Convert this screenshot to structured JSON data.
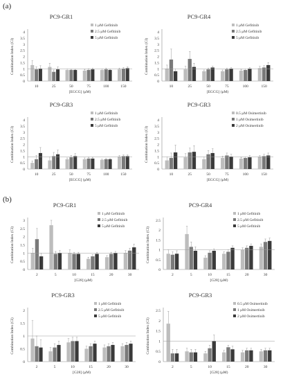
{
  "sections": [
    "(a)",
    "(b)"
  ],
  "colors": {
    "light": "#bdbdbd",
    "mid": "#7a7a7a",
    "dark": "#3a3a3a",
    "axis": "#888888",
    "ref": "#9a9a9a"
  },
  "chart_data": [
    {
      "type": "bar",
      "title": "PC9-GR1",
      "ylabel": "Combination Index (CI)",
      "xlabel": "[EGCG] (μM)",
      "ylim": [
        0,
        4
      ],
      "yticks": [
        0,
        0.5,
        1,
        1.5,
        2,
        2.5,
        3,
        3.5,
        4
      ],
      "ytick_labels": [
        "0",
        "0.5",
        "1",
        "1.5",
        "2",
        "2.5",
        "3",
        "3.5",
        "4"
      ],
      "categories": [
        "10",
        "25",
        "50",
        "75",
        "100",
        "150"
      ],
      "reference_line": 1,
      "legend_position": "top-right",
      "series": [
        {
          "name": "1 μM Gefitinib",
          "values": [
            1.3,
            1.15,
            0.9,
            0.85,
            0.9,
            0.95
          ],
          "errors": [
            0.35,
            0.3,
            0.1,
            0.1,
            0.1,
            0.1
          ]
        },
        {
          "name": "2.5 μM Gefitinib",
          "values": [
            0.95,
            0.75,
            0.9,
            0.9,
            0.95,
            1.0
          ],
          "errors": [
            0.2,
            0.15,
            0.05,
            0.08,
            0.1,
            0.1
          ]
        },
        {
          "name": "5 μM Gefitinib",
          "values": [
            1.0,
            0.95,
            0.9,
            0.95,
            0.9,
            1.05
          ],
          "errors": [
            0.25,
            0.2,
            0.05,
            0.1,
            0.05,
            0.1
          ]
        }
      ]
    },
    {
      "type": "bar",
      "title": "PC9-GR4",
      "ylabel": "Combination Index (CI)",
      "xlabel": "[EGCG] (μM)",
      "ylim": [
        0,
        4
      ],
      "yticks": [
        0,
        0.5,
        1,
        1.5,
        2,
        2.5,
        3,
        3.5,
        4
      ],
      "ytick_labels": [
        "0",
        "0.5",
        "1",
        "1.5",
        "2",
        "2.5",
        "3",
        "3.5",
        "4"
      ],
      "categories": [
        "10",
        "25",
        "50",
        "75",
        "100",
        "150"
      ],
      "reference_line": 1,
      "legend_position": "top-right",
      "series": [
        {
          "name": "1 μM Gefitinib",
          "values": [
            1.0,
            0.95,
            0.8,
            0.8,
            0.85,
            1.05
          ],
          "errors": [
            0.3,
            0.25,
            0.1,
            0.1,
            0.1,
            0.15
          ]
        },
        {
          "name": "2.5 μM Gefitinib",
          "values": [
            1.75,
            1.8,
            0.95,
            0.95,
            0.9,
            1.1
          ],
          "errors": [
            0.85,
            0.6,
            0.1,
            0.1,
            0.1,
            0.15
          ]
        },
        {
          "name": "5 μM Gefitinib",
          "values": [
            0.8,
            1.15,
            1.1,
            1.0,
            1.0,
            1.3
          ],
          "errors": [
            0.2,
            0.3,
            0.1,
            0.1,
            0.1,
            0.2
          ]
        }
      ]
    },
    {
      "type": "bar",
      "title": "PC9-GR3",
      "ylabel": "Combination Index (CI)",
      "xlabel": "[EGCG] (μM)",
      "ylim": [
        0,
        4
      ],
      "yticks": [
        0,
        0.5,
        1,
        1.5,
        2,
        2.5,
        3,
        3.5,
        4
      ],
      "ytick_labels": [
        "0",
        "0.5",
        "1",
        "1.5",
        "2",
        "2.5",
        "3",
        "3.5",
        "4"
      ],
      "categories": [
        "10",
        "25",
        "50",
        "75",
        "100",
        "150"
      ],
      "reference_line": 1,
      "legend_position": "top-right",
      "series": [
        {
          "name": "1 μM Gefitinib",
          "values": [
            0.5,
            0.7,
            0.8,
            0.8,
            0.75,
            1.0
          ],
          "errors": [
            0.15,
            0.3,
            0.1,
            0.1,
            0.05,
            0.1
          ]
        },
        {
          "name": "2.5 μM Gefitinib",
          "values": [
            0.8,
            1.05,
            0.95,
            0.85,
            0.8,
            1.05
          ],
          "errors": [
            0.3,
            0.3,
            0.15,
            0.1,
            0.05,
            0.1
          ]
        },
        {
          "name": "5 μM Gefitinib",
          "values": [
            1.3,
            1.2,
            1.05,
            0.85,
            0.8,
            1.05
          ],
          "errors": [
            0.45,
            0.35,
            0.2,
            0.1,
            0.05,
            0.1
          ]
        }
      ]
    },
    {
      "type": "bar",
      "title": "PC9-GR3",
      "ylabel": "Combination Index (CI)",
      "xlabel": "[EGCG] (μM)",
      "ylim": [
        0,
        4
      ],
      "yticks": [
        0,
        0.5,
        1,
        1.5,
        2,
        2.5,
        3,
        3.5,
        4
      ],
      "ytick_labels": [
        "0",
        "0.5",
        "1",
        "1.5",
        "2",
        "2.5",
        "3",
        "3.5",
        "4"
      ],
      "categories": [
        "10",
        "25",
        "50",
        "75",
        "100",
        "150"
      ],
      "reference_line": 1,
      "legend_position": "top-right",
      "series": [
        {
          "name": "0.5 μM Osimertinib",
          "values": [
            0.7,
            0.95,
            0.8,
            0.9,
            0.85,
            1.0
          ],
          "errors": [
            0.3,
            0.3,
            0.2,
            0.15,
            0.1,
            0.1
          ]
        },
        {
          "name": "1 μM Osimertinib",
          "values": [
            0.9,
            1.35,
            1.2,
            1.1,
            0.9,
            1.05
          ],
          "errors": [
            0.4,
            0.35,
            0.3,
            0.2,
            0.1,
            0.15
          ]
        },
        {
          "name": "2 μM Osimertinib",
          "values": [
            1.35,
            1.4,
            1.3,
            1.0,
            0.95,
            1.1
          ],
          "errors": [
            0.6,
            0.5,
            0.35,
            0.2,
            0.15,
            0.2
          ]
        }
      ]
    },
    {
      "type": "bar",
      "title": "PC9-GR1",
      "ylabel": "Combination Index (CI)",
      "xlabel": "[G28] (μM)",
      "ylim": [
        0,
        3
      ],
      "yticks": [
        0,
        0.5,
        1,
        1.5,
        2,
        2.5,
        3
      ],
      "ytick_labels": [
        "0",
        "0.5",
        "1",
        "1.5",
        "2",
        "2.5",
        "3"
      ],
      "categories": [
        "2",
        "5",
        "10",
        "15",
        "20",
        "30"
      ],
      "reference_line": 1,
      "legend_position": "top-right",
      "series": [
        {
          "name": "1 μM Gefitinib",
          "values": [
            1.0,
            2.7,
            1.0,
            0.65,
            0.75,
            1.0
          ],
          "errors": [
            0.3,
            0.3,
            0.2,
            0.1,
            0.1,
            0.15
          ]
        },
        {
          "name": "2.5 μM Gefitinib",
          "values": [
            1.85,
            0.95,
            0.95,
            0.8,
            0.95,
            1.15
          ],
          "errors": [
            0.65,
            0.15,
            0.1,
            0.1,
            0.1,
            0.15
          ]
        },
        {
          "name": "5 μM Gefitinib",
          "values": [
            0.8,
            1.0,
            0.95,
            0.95,
            1.0,
            1.35
          ],
          "errors": [
            0.2,
            0.15,
            0.1,
            0.1,
            0.1,
            0.2
          ]
        }
      ]
    },
    {
      "type": "bar",
      "title": "PC9-GR4",
      "ylabel": "Combination Index (CI)",
      "xlabel": "[G28] (μM)",
      "ylim": [
        0,
        2.5
      ],
      "yticks": [
        0,
        0.5,
        1,
        1.5,
        2,
        2.5
      ],
      "ytick_labels": [
        "0",
        "0.5",
        "1",
        "1.5",
        "2",
        "2.5"
      ],
      "categories": [
        "2",
        "5",
        "10",
        "15",
        "20",
        "30"
      ],
      "reference_line": 1,
      "legend_position": "top-right",
      "series": [
        {
          "name": "1 μM Gefitinib",
          "values": [
            0.8,
            1.8,
            0.6,
            0.8,
            1.0,
            1.15
          ],
          "errors": [
            0.2,
            0.4,
            0.1,
            0.1,
            0.1,
            0.15
          ]
        },
        {
          "name": "2.5 μM Gefitinib",
          "values": [
            0.75,
            1.15,
            0.85,
            0.9,
            1.1,
            1.4
          ],
          "errors": [
            0.15,
            0.25,
            0.1,
            0.1,
            0.1,
            0.15
          ]
        },
        {
          "name": "5 μM Gefitinib",
          "values": [
            0.8,
            0.95,
            0.95,
            1.1,
            1.2,
            1.45
          ],
          "errors": [
            0.15,
            0.2,
            0.1,
            0.1,
            0.1,
            0.15
          ]
        }
      ]
    },
    {
      "type": "bar",
      "title": "PC9-GR3",
      "ylabel": "Combination Index (CI)",
      "xlabel": "[G28] (μM)",
      "ylim": [
        0,
        2
      ],
      "yticks": [
        0,
        0.5,
        1,
        1.5,
        2
      ],
      "ytick_labels": [
        "0",
        "0.5",
        "1",
        "1.5",
        "2"
      ],
      "categories": [
        "2",
        "5",
        "10",
        "15",
        "20",
        "30"
      ],
      "reference_line": 1,
      "legend_position": "top-right",
      "series": [
        {
          "name": "1 μM Gefitinib",
          "values": [
            0.9,
            0.4,
            0.75,
            0.5,
            0.55,
            0.6
          ],
          "errors": [
            0.7,
            0.15,
            0.15,
            0.1,
            0.1,
            0.1
          ]
        },
        {
          "name": "2.5 μM Gefitinib",
          "values": [
            0.6,
            0.55,
            0.8,
            0.6,
            0.6,
            0.65
          ],
          "errors": [
            0.4,
            0.15,
            0.15,
            0.1,
            0.1,
            0.1
          ]
        },
        {
          "name": "5 μM Gefitinib",
          "values": [
            0.55,
            0.65,
            0.8,
            0.7,
            0.65,
            0.7
          ],
          "errors": [
            0.3,
            0.15,
            0.15,
            0.1,
            0.1,
            0.1
          ]
        }
      ]
    },
    {
      "type": "bar",
      "title": "PC9-GR3",
      "ylabel": "Combination Index (CI)",
      "xlabel": "[G28] (μM)",
      "ylim": [
        0,
        2.5
      ],
      "yticks": [
        0,
        0.5,
        1,
        1.5,
        2,
        2.5
      ],
      "ytick_labels": [
        "0",
        "0.5",
        "1",
        "1.5",
        "2",
        "2.5"
      ],
      "categories": [
        "2",
        "5",
        "10",
        "15",
        "20",
        "30"
      ],
      "reference_line": 1,
      "legend_position": "top-right",
      "series": [
        {
          "name": "0.5 μM Osimertinib",
          "values": [
            1.85,
            0.5,
            0.4,
            0.45,
            0.45,
            0.5
          ],
          "errors": [
            0.6,
            0.15,
            0.1,
            0.1,
            0.1,
            0.1
          ]
        },
        {
          "name": "1 μM Osimertinib",
          "values": [
            0.4,
            0.45,
            0.65,
            0.7,
            0.55,
            0.55
          ],
          "errors": [
            0.2,
            0.15,
            0.15,
            0.1,
            0.1,
            0.1
          ]
        },
        {
          "name": "2 μM Osimertinib",
          "values": [
            0.4,
            0.45,
            1.0,
            0.6,
            0.55,
            0.55
          ],
          "errors": [
            0.2,
            0.15,
            0.3,
            0.15,
            0.1,
            0.1
          ]
        }
      ]
    }
  ]
}
